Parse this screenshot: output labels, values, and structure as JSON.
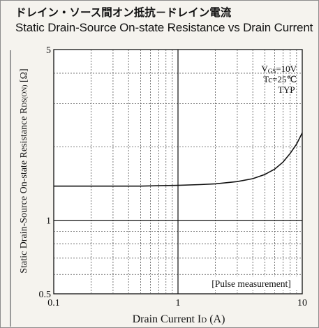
{
  "title_jp": "ドレイン・ソース間オン抵抗－ドレイン電流",
  "title_en": "Static Drain-Source On-state Resistance vs Drain Current",
  "chart_data": {
    "type": "line",
    "x_scale": "log",
    "y_scale": "log",
    "xlim": [
      0.1,
      10
    ],
    "ylim": [
      0.5,
      5
    ],
    "grid": true,
    "xlabel": "Drain Current  ID (A)",
    "ylabel": "Static Drain-Source On-state Resistance  RDS(ON) [Ω]",
    "x_ticks": [
      "0.1",
      "1",
      "10"
    ],
    "y_ticks": [
      "0.5",
      "1",
      "5"
    ],
    "annotations": [
      "VGS=10V",
      "Tc=25℃",
      "TYP",
      "[Pulse measurement]"
    ],
    "series": [
      {
        "name": "",
        "x": [
          0.1,
          0.2,
          0.3,
          0.5,
          0.7,
          1.0,
          1.5,
          2.0,
          3.0,
          4.0,
          5.0,
          6.0,
          7.0,
          8.0,
          9.0,
          10.0
        ],
        "y": [
          1.38,
          1.38,
          1.38,
          1.38,
          1.385,
          1.39,
          1.4,
          1.41,
          1.44,
          1.48,
          1.54,
          1.62,
          1.73,
          1.88,
          2.05,
          2.28
        ]
      }
    ]
  }
}
